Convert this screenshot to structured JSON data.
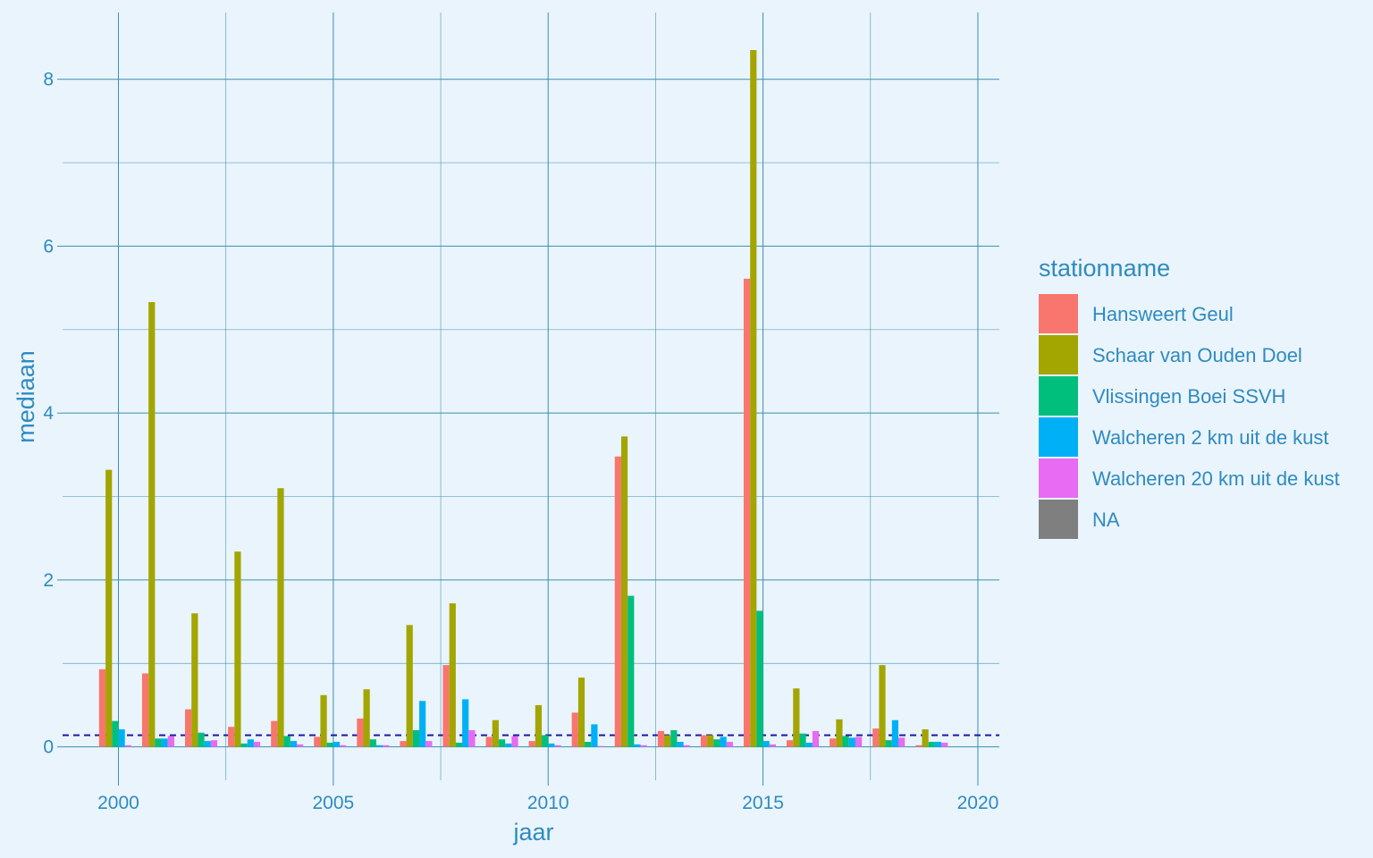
{
  "chart_data": {
    "type": "bar",
    "xlabel": "jaar",
    "ylabel": "mediaan",
    "xlim": [
      1998.7,
      2020.5
    ],
    "ylim": [
      -0.4,
      8.8
    ],
    "x_ticks": [
      2000,
      2005,
      2010,
      2015,
      2020
    ],
    "y_ticks": [
      0,
      2,
      4,
      6,
      8
    ],
    "grid": true,
    "legend_title": "stationname",
    "legend_position": "right",
    "reference_line": {
      "y": 0.14,
      "style": "dashed",
      "color": "#1a1aa6"
    },
    "categories": [
      2000,
      2001,
      2002,
      2003,
      2004,
      2005,
      2006,
      2007,
      2008,
      2009,
      2010,
      2011,
      2012,
      2013,
      2014,
      2015,
      2016,
      2017,
      2018,
      2019
    ],
    "series": [
      {
        "name": "Hansweert Geul",
        "color": "#F8766D",
        "values": [
          0.93,
          0.88,
          0.45,
          0.24,
          0.31,
          0.12,
          0.34,
          0.07,
          0.98,
          0.12,
          0.07,
          0.41,
          3.48,
          0.19,
          0.14,
          5.61,
          0.08,
          0.1,
          0.22,
          0.02
        ]
      },
      {
        "name": "Schaar van Ouden Doel",
        "color": "#A3A500",
        "values": [
          3.32,
          5.33,
          1.6,
          2.34,
          3.1,
          0.62,
          0.69,
          1.46,
          1.72,
          0.32,
          0.5,
          0.83,
          3.72,
          0.14,
          0.14,
          8.35,
          0.7,
          0.33,
          0.98,
          0.21
        ]
      },
      {
        "name": "Vlissingen Boei SSVH",
        "color": "#00BF7D",
        "values": [
          0.31,
          0.1,
          0.17,
          0.04,
          0.13,
          0.05,
          0.09,
          0.2,
          0.05,
          0.09,
          0.14,
          0.06,
          1.81,
          0.2,
          0.09,
          1.63,
          0.16,
          0.13,
          0.08,
          0.06
        ]
      },
      {
        "name": "Walcheren 2 km uit de kust",
        "color": "#00B0F6",
        "values": [
          0.21,
          0.1,
          0.07,
          0.09,
          0.07,
          0.06,
          0.02,
          0.55,
          0.57,
          0.04,
          0.04,
          0.27,
          0.03,
          0.06,
          0.12,
          0.07,
          0.05,
          0.11,
          0.32,
          0.06
        ]
      },
      {
        "name": "Walcheren 20 km uit de kust",
        "color": "#E76BF3",
        "values": [
          0.02,
          0.13,
          0.08,
          0.06,
          0.03,
          0.02,
          0.02,
          0.07,
          0.2,
          0.13,
          0.02,
          0.01,
          0.02,
          0.02,
          0.06,
          0.03,
          0.19,
          0.12,
          0.11,
          0.05
        ]
      },
      {
        "name": "NA",
        "color": "#7F7F7F",
        "values": [
          0,
          0,
          0,
          0,
          0,
          0,
          0,
          0,
          0,
          0,
          0,
          0,
          0,
          0,
          0,
          0,
          0,
          0,
          0,
          0
        ]
      }
    ]
  }
}
